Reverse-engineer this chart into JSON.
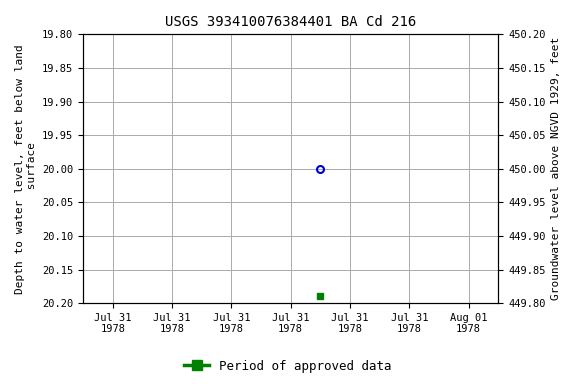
{
  "title": "USGS 393410076384401 BA Cd 216",
  "ylabel_left": "Depth to water level, feet below land\n surface",
  "ylabel_right": "Groundwater level above NGVD 1929, feet",
  "ylim_left": [
    20.2,
    19.8
  ],
  "ylim_right": [
    449.8,
    450.2
  ],
  "yticks_left": [
    19.8,
    19.85,
    19.9,
    19.95,
    20.0,
    20.05,
    20.1,
    20.15,
    20.2
  ],
  "yticks_right": [
    449.8,
    449.85,
    449.9,
    449.95,
    450.0,
    450.05,
    450.1,
    450.15,
    450.2
  ],
  "xtick_labels": [
    "Jul 31\n1978",
    "Jul 31\n1978",
    "Jul 31\n1978",
    "Jul 31\n1978",
    "Jul 31\n1978",
    "Jul 31\n1978",
    "Aug 01\n1978"
  ],
  "blue_point_x": 3.5,
  "blue_point_y": 20.0,
  "green_point_x": 3.5,
  "green_point_y": 20.19,
  "xlim": [
    -0.5,
    6.5
  ],
  "legend_label": "Period of approved data",
  "blue_color": "#0000CC",
  "green_color": "#008000",
  "grid_color": "#AAAAAA",
  "bg_color": "#FFFFFF",
  "title_fontsize": 10,
  "label_fontsize": 8,
  "tick_fontsize": 7.5,
  "legend_fontsize": 9
}
